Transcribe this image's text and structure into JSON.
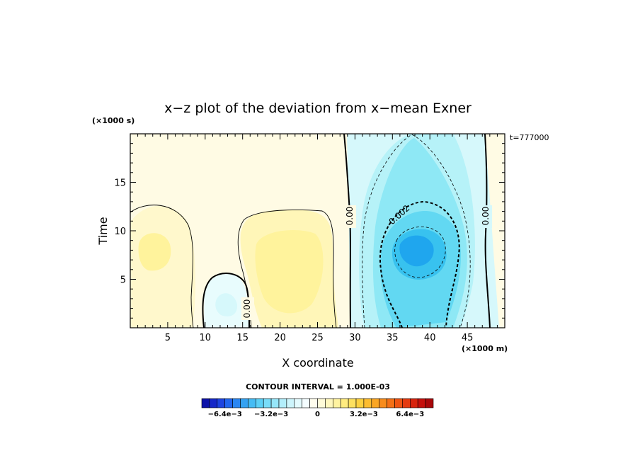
{
  "chart_data": {
    "type": "heatmap",
    "title": "x−z plot of the deviation from x−mean Exner",
    "xlabel": "X coordinate",
    "ylabel": "Time",
    "x_unit": "(×1000 m)",
    "y_unit": "(×1000 s)",
    "time_label": "t=777000",
    "xlim": [
      0,
      50
    ],
    "ylim": [
      0,
      20
    ],
    "x_ticks": [
      "5",
      "10",
      "15",
      "20",
      "25",
      "30",
      "35",
      "40",
      "45"
    ],
    "y_ticks": [
      "5",
      "10",
      "15"
    ],
    "contour_interval_label": "CONTOUR INTERVAL = 1.000E-03",
    "contour_labels": [
      "0.00",
      "0.00",
      "-0.002",
      "0.00"
    ],
    "colorbar": {
      "vmin": -0.008,
      "vmax": 0.008,
      "tick_labels": [
        "−6.4e−3",
        "−3.2e−3",
        "0",
        "3.2e−3",
        "6.4e−3"
      ],
      "tick_values": [
        -0.0064,
        -0.0032,
        0,
        0.0032,
        0.0064
      ]
    },
    "field_features": [
      {
        "kind": "minimum",
        "x": 38,
        "y": 8.5,
        "value": -0.0045
      },
      {
        "kind": "maximum",
        "x": 21,
        "y": 8,
        "value": 0.0012
      },
      {
        "kind": "maximum",
        "x": 3,
        "y": 8,
        "value": 0.001
      },
      {
        "kind": "minimum",
        "x": 12.5,
        "y": 3,
        "value": -0.0005
      }
    ]
  }
}
